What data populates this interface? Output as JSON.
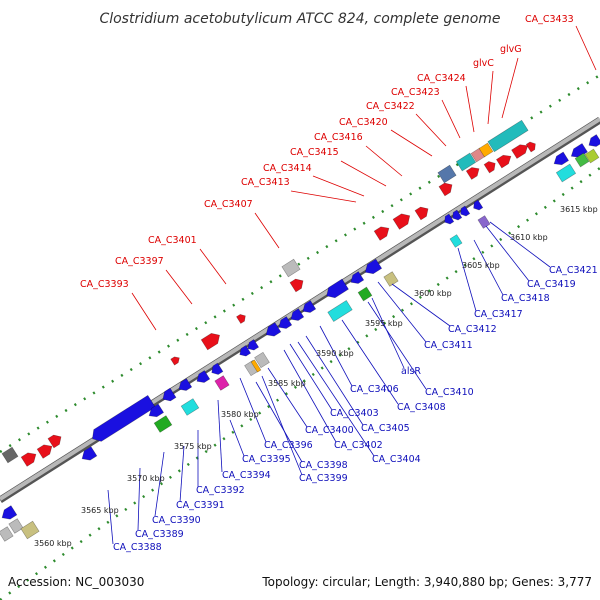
{
  "title": "Clostridium acetobutylicum ATCC 824, complete genome",
  "footer": {
    "accession": "Accession: NC_003030",
    "summary": "Topology: circular; Length: 3,940,880 bp; Genes: 3,777"
  },
  "colors": {
    "forward_label": "#dd0000",
    "reverse_label": "#1010bb",
    "forward_gene": "#e8101a",
    "reverse_gene": "#1a10e0",
    "backbone": "#999999",
    "tick_dot": "#2e8b2e"
  },
  "ticks": [
    "3560 kbp",
    "3565 kbp",
    "3570 kbp",
    "3575 kbp",
    "3580 kbp",
    "3585 kbp",
    "3590 kbp",
    "3595 kbp",
    "3600 kbp",
    "3605 kbp",
    "3610 kbp",
    "3615 kbp"
  ],
  "top_labels": [
    "CA_C3393",
    "CA_C3397",
    "CA_C3401",
    "CA_C3407",
    "CA_C3413",
    "CA_C3414",
    "CA_C3415",
    "CA_C3416",
    "CA_C3420",
    "CA_C3422",
    "CA_C3423",
    "CA_C3424",
    "glvC",
    "glvG",
    "CA_C3433"
  ],
  "bottom_labels": [
    "CA_C3388",
    "CA_C3389",
    "CA_C3390",
    "CA_C3391",
    "CA_C3392",
    "CA_C3394",
    "CA_C3395",
    "CA_C3396",
    "CA_C3398",
    "CA_C3399",
    "CA_C3400",
    "CA_C3402",
    "CA_C3403",
    "CA_C3404",
    "CA_C3405",
    "CA_C3406",
    "CA_C3408",
    "CA_C3410",
    "alsR",
    "CA_C3411",
    "CA_C3412",
    "CA_C3417",
    "CA_C3418",
    "CA_C3419",
    "CA_C3421"
  ]
}
